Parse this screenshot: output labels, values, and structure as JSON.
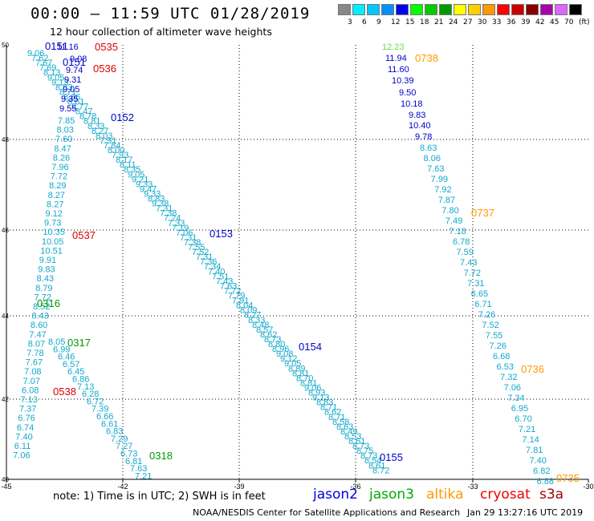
{
  "title": "00:00 – 11:59 UTC 01/28/2019",
  "subtitle": "12 hour collection of altimeter wave heights",
  "legend": {
    "unit": "(ft)",
    "colors": [
      "#888888",
      "#00eeff",
      "#00c8ff",
      "#0090ff",
      "#0000ee",
      "#00ff00",
      "#00cc00",
      "#009900",
      "#ffff00",
      "#ffd000",
      "#ff9900",
      "#ff0000",
      "#cc0000",
      "#880000",
      "#aa00aa",
      "#dd66ff",
      "#000000"
    ],
    "labels": [
      "3",
      "6",
      "9",
      "12",
      "15",
      "18",
      "21",
      "24",
      "27",
      "30",
      "33",
      "36",
      "39",
      "42",
      "45",
      "70"
    ]
  },
  "axes": {
    "x_ticks": [
      "-45",
      "-42",
      "-39",
      "-36",
      "-33",
      "-30"
    ],
    "y_ticks": [
      "50",
      "48",
      "46",
      "44",
      "42",
      "40"
    ]
  },
  "tracks": {
    "left_wave_heights": [
      "9.06",
      "7.62",
      "7.67",
      "7.69",
      "8.13",
      "9.05",
      "9.13",
      "8.83",
      "8.71",
      "8.66",
      "8.61",
      "8.77",
      "8.47",
      "8.78",
      "8.81",
      "8.33",
      "8.27",
      "8.03",
      "7.91",
      "7.84",
      "8.00",
      "7.93",
      "8.17",
      "8.11",
      "8.35",
      "9.05",
      "9.21",
      "9.33",
      "9.47",
      "9.33",
      "8.83",
      "9.38",
      "7.31",
      "7.38",
      "7.24",
      "7.33",
      "7.19",
      "7.06",
      "7.31",
      "7.38",
      "7.55",
      "7.52",
      "7.31",
      "7.36",
      "7.34",
      "7.40",
      "7.51",
      "7.43",
      "7.63",
      "7.72",
      "7.79",
      "7.91",
      "8.04",
      "8.09",
      "8.27",
      "8.33",
      "8.48",
      "8.57",
      "8.62",
      "8.73",
      "8.80",
      "8.96",
      "9.08",
      "9.12",
      "9.05",
      "8.89",
      "8.81",
      "8.70",
      "8.81",
      "9.06",
      "8.93",
      "9.13",
      "8.83",
      "8.71",
      "8.62",
      "8.71",
      "8.58",
      "8.63",
      "8.49",
      "8.53",
      "8.61",
      "8.73",
      "8.75",
      "8.73",
      "8.54",
      "8.61",
      "8.72"
    ],
    "column_wave_heights": [
      "7.85",
      "8.03",
      "7.60",
      "8.47",
      "8.26",
      "7.96",
      "7.72",
      "8.29",
      "8.27",
      "8.27",
      "9.12",
      "9.73",
      "10.35",
      "10.05",
      "10.51",
      "9.91",
      "9.83",
      "8.43",
      "8.79",
      "7.72",
      "8.52",
      "8.43",
      "8.60",
      "7.47",
      "8.07",
      "7.78",
      "7.67",
      "7.08",
      "7.07",
      "6.08",
      "7.13",
      "7.37",
      "6.76",
      "6.74",
      "7.40",
      "6.11",
      "7.06"
    ],
    "mid_wave_heights": [
      "8.05",
      "6.99",
      "6.46",
      "6.57",
      "6.45",
      "6.86",
      "7.13",
      "6.28",
      "6.72",
      "7.39",
      "6.66",
      "6.61",
      "6.83",
      "7.29",
      "7.27",
      "6.73",
      "6.81",
      "7.63",
      "7.21"
    ],
    "upper_left_values": [
      "9.74",
      "9.31",
      "9.05",
      "9.35",
      "9.55"
    ],
    "right_track_dark_values": [
      "11.16",
      "9.08",
      "11.94",
      "11.60",
      "10.39",
      "9.50",
      "10.18",
      "9.83",
      "10.40",
      "9.78"
    ],
    "right_track_green_value": "12.23",
    "right_track_wave_heights": [
      "8.63",
      "8.06",
      "7.63",
      "7.99",
      "7.92",
      "7.87",
      "7.80",
      "7.49",
      "7.18",
      "6.78",
      "7.59",
      "7.43",
      "7.72",
      "7.31",
      "6.65",
      "6.71",
      "7.26",
      "7.52",
      "7.55",
      "7.26",
      "6.68",
      "6.53",
      "7.32",
      "7.06",
      "7.34",
      "6.95",
      "6.70",
      "7.21",
      "7.14",
      "7.81",
      "7.40",
      "6.82",
      "6.88"
    ]
  },
  "time_labels": {
    "jason2": [
      "0151",
      "0151",
      "0152",
      "0153",
      "0154",
      "0155"
    ],
    "jason3": [
      "0316",
      "0317",
      "0318"
    ],
    "altika": [
      "0738",
      "0737",
      "0736",
      "0735"
    ],
    "cryosat": [
      "0535",
      "0536",
      "0537",
      "0538"
    ]
  },
  "footer": {
    "note": "note:  1) Time is in UTC;  2) SWH is in feet",
    "satellites": [
      {
        "name": "jason2",
        "color": "#0000dd"
      },
      {
        "name": "jason3",
        "color": "#00aa00"
      },
      {
        "name": "altika",
        "color": "#ff9900"
      },
      {
        "name": "cryosat",
        "color": "#ee0000"
      },
      {
        "name": "s3a",
        "color": "#aa0000"
      }
    ],
    "credit": "NOAA/NESDIS Center for Satellite Applications and Research",
    "timestamp": "Jan 29 13:27:16 UTC 2019"
  },
  "colors": {
    "cyan": "#11a8cc",
    "jason2": "#0000cc",
    "jason3": "#009900",
    "altika": "#ff9900",
    "cryosat": "#dd0000",
    "light_green": "#66dd44"
  }
}
